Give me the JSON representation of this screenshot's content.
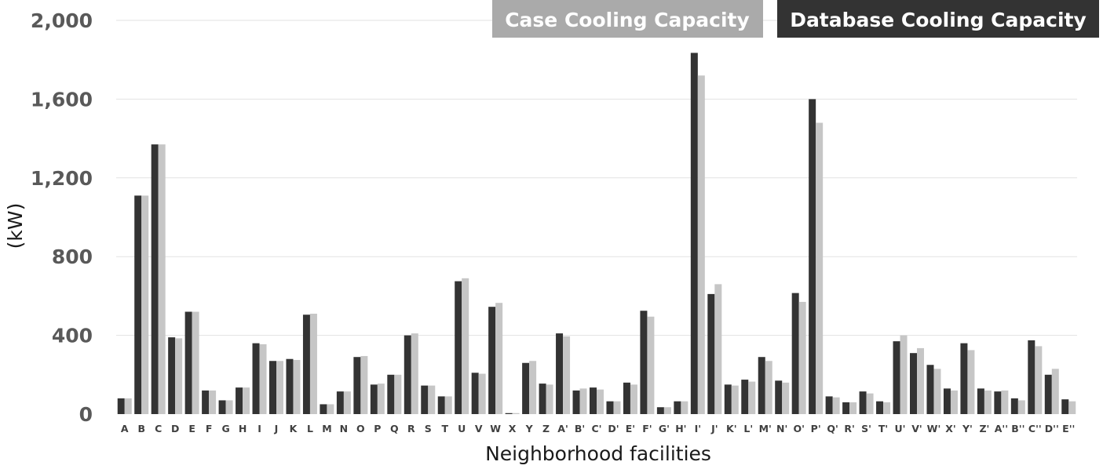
{
  "chart_data": {
    "type": "bar",
    "title": "",
    "xlabel": "Neighborhood facilities",
    "ylabel": "(kW)",
    "ylim": [
      0,
      2000
    ],
    "yticks": [
      0,
      400,
      800,
      1200,
      1600,
      2000
    ],
    "ytick_labels": [
      "0",
      "400",
      "800",
      "1,200",
      "1,600",
      "2,000"
    ],
    "grid": true,
    "legend_position": "top-right",
    "colors": {
      "database": "#333333",
      "case": "#c6c6c6",
      "case_legend_bg": "#aaaaaa",
      "database_legend_bg": "#333333",
      "grid": "#e2e2e2"
    },
    "categories": [
      "A",
      "B",
      "C",
      "D",
      "E",
      "F",
      "G",
      "H",
      "I",
      "J",
      "K",
      "L",
      "M",
      "N",
      "O",
      "P",
      "Q",
      "R",
      "S",
      "T",
      "U",
      "V",
      "W",
      "X",
      "Y",
      "Z",
      "A'",
      "B'",
      "C'",
      "D'",
      "E'",
      "F'",
      "G'",
      "H'",
      "I'",
      "J'",
      "K'",
      "L'",
      "M'",
      "N'",
      "O'",
      "P'",
      "Q'",
      "R'",
      "S'",
      "T'",
      "U'",
      "V'",
      "W'",
      "X'",
      "Y'",
      "Z'",
      "A''",
      "B''",
      "C''",
      "D''",
      "E''"
    ],
    "series": [
      {
        "name": "Database Cooling Capacity",
        "values": [
          80,
          1110,
          1370,
          390,
          520,
          120,
          70,
          135,
          360,
          270,
          280,
          505,
          50,
          115,
          290,
          150,
          200,
          400,
          145,
          90,
          675,
          210,
          545,
          5,
          260,
          155,
          410,
          120,
          135,
          65,
          160,
          525,
          35,
          65,
          1835,
          610,
          150,
          175,
          290,
          170,
          615,
          1600,
          90,
          60,
          115,
          65,
          370,
          310,
          250,
          130,
          360,
          130,
          115,
          80,
          375,
          200,
          75
        ]
      },
      {
        "name": "Case Cooling Capacity",
        "values": [
          80,
          1110,
          1370,
          385,
          520,
          120,
          70,
          135,
          355,
          270,
          275,
          510,
          50,
          115,
          295,
          155,
          200,
          410,
          145,
          90,
          690,
          205,
          565,
          5,
          270,
          150,
          395,
          130,
          125,
          65,
          150,
          495,
          35,
          65,
          1720,
          660,
          145,
          165,
          270,
          160,
          570,
          1480,
          85,
          60,
          105,
          60,
          400,
          335,
          230,
          120,
          325,
          120,
          120,
          70,
          345,
          230,
          65
        ]
      }
    ]
  }
}
